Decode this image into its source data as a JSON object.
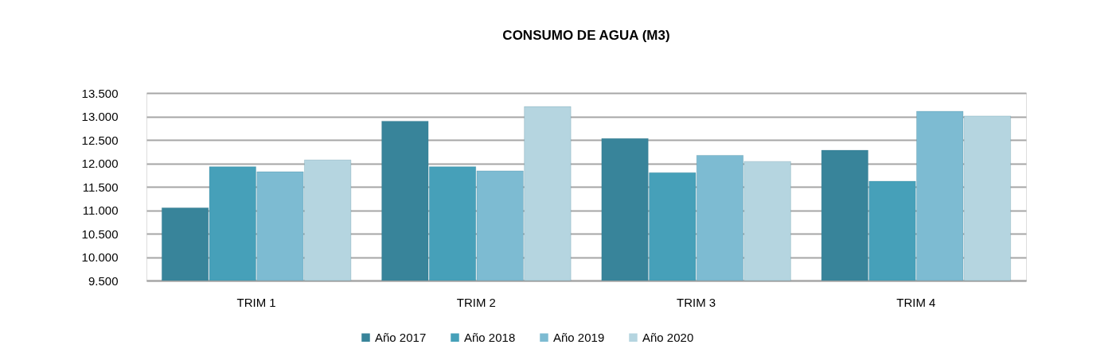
{
  "chart_data": {
    "type": "bar",
    "title": "CONSUMO DE AGUA (M3)",
    "categories": [
      "TRIM 1",
      "TRIM 2",
      "TRIM 3",
      "TRIM 4"
    ],
    "series": [
      {
        "name": "Año 2017",
        "color": "#38849a",
        "values": [
          11050,
          12900,
          12530,
          12280
        ]
      },
      {
        "name": "Año 2018",
        "color": "#46a0b9",
        "values": [
          11930,
          11930,
          11800,
          11620
        ]
      },
      {
        "name": "Año 2019",
        "color": "#7dbbd2",
        "values": [
          11820,
          11840,
          12170,
          13110
        ]
      },
      {
        "name": "Año 2020",
        "color": "#b5d5e0",
        "values": [
          12070,
          13210,
          12040,
          13010
        ]
      }
    ],
    "ylim": [
      9500,
      13500
    ],
    "yticks": [
      {
        "value": 9500,
        "label": "9.500"
      },
      {
        "value": 10000,
        "label": "10.000"
      },
      {
        "value": 10500,
        "label": "10.500"
      },
      {
        "value": 11000,
        "label": "11.000"
      },
      {
        "value": 11500,
        "label": "11.500"
      },
      {
        "value": 12000,
        "label": "12.000"
      },
      {
        "value": 12500,
        "label": "12.500"
      },
      {
        "value": 13000,
        "label": "13.000"
      },
      {
        "value": 13500,
        "label": "13.500"
      }
    ],
    "grid": "y",
    "legend": "bottom"
  }
}
